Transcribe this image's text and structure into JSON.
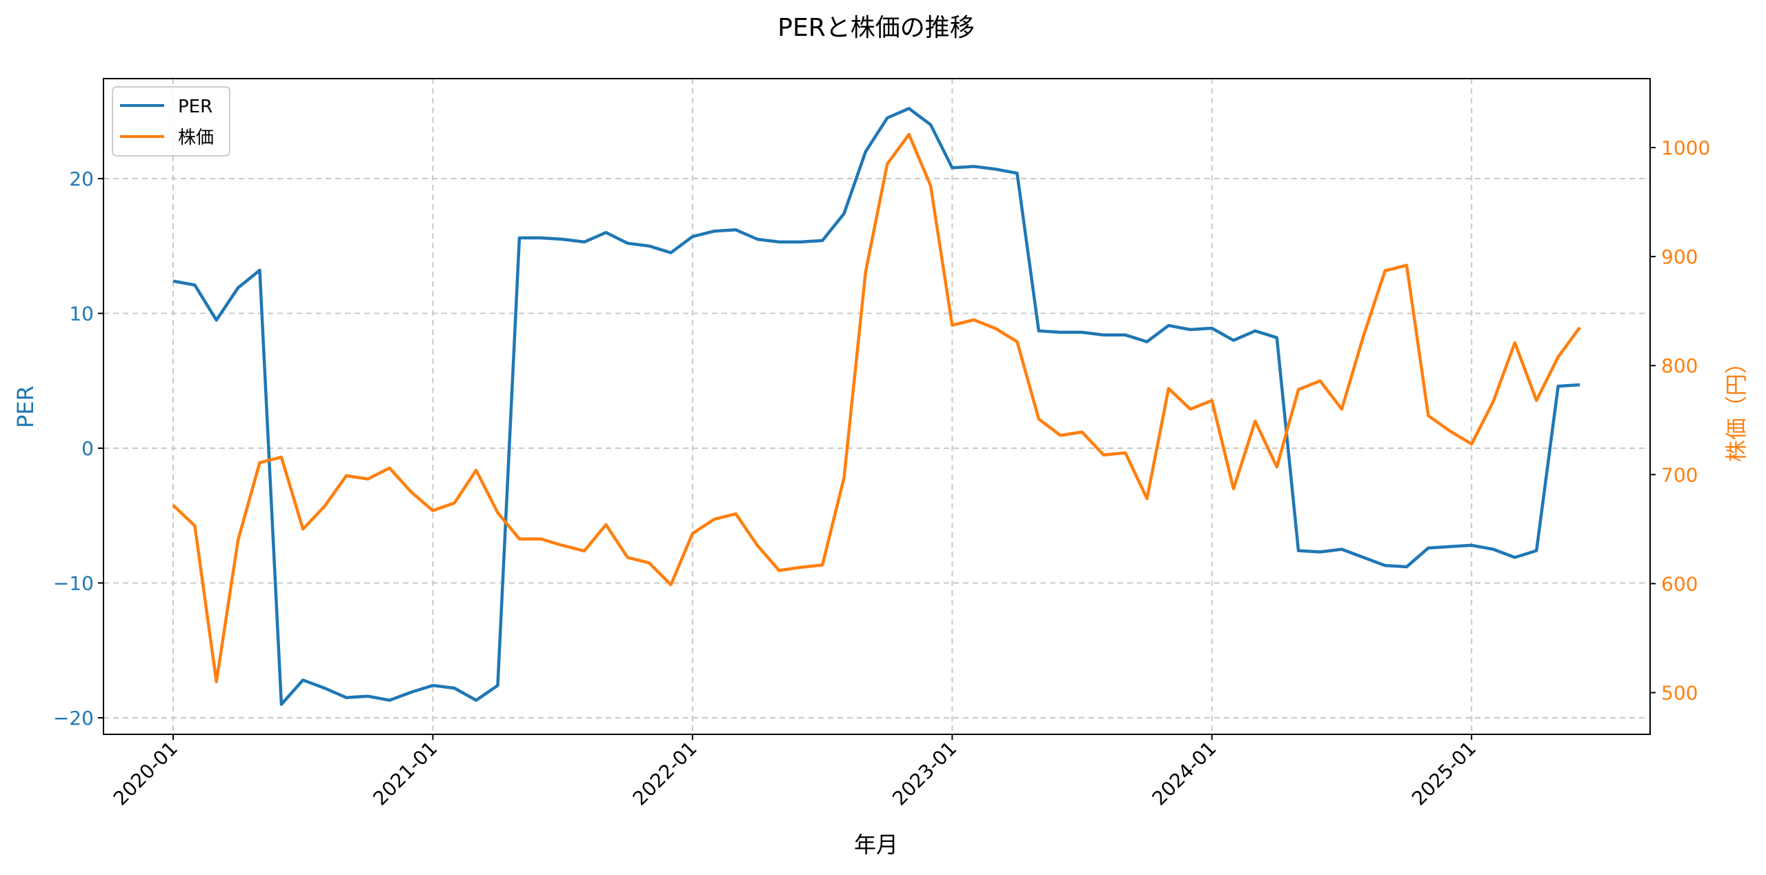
{
  "chart_data": {
    "type": "line",
    "title": "PERと株価の推移",
    "xlabel": "年月",
    "ylabel": "PER",
    "ylabel_right": "株価（円）",
    "ylim": [
      -21.3,
      27.0
    ],
    "ylim_right": [
      463,
      1067
    ],
    "grid": true,
    "legend_position": "upper left",
    "x_tick_labels": [
      "2020-01",
      "2021-01",
      "2022-01",
      "2023-01",
      "2024-01",
      "2025-01"
    ],
    "y_tick_labels": [
      "−20",
      "−10",
      "0",
      "10",
      "20"
    ],
    "y_ticks": [
      -20,
      -10,
      0,
      10,
      20
    ],
    "y_right_tick_labels": [
      "500",
      "600",
      "700",
      "800",
      "900",
      "1000"
    ],
    "y_right_ticks": [
      500,
      600,
      700,
      800,
      900,
      1000
    ],
    "x_start": "2020-01",
    "x_end": "2025-06",
    "series": [
      {
        "name": "PER",
        "axis": "left",
        "color": "#1f77b4",
        "values": [
          12.4,
          12.1,
          9.5,
          11.9,
          13.2,
          -19.0,
          -17.2,
          -17.8,
          -18.5,
          -18.4,
          -18.7,
          -18.1,
          -17.6,
          -17.8,
          -18.7,
          -17.6,
          15.6,
          15.6,
          15.5,
          15.3,
          16.0,
          15.2,
          15.0,
          14.5,
          15.7,
          16.1,
          16.2,
          15.5,
          15.3,
          15.3,
          15.4,
          17.4,
          22.0,
          24.5,
          25.2,
          24.0,
          20.8,
          20.9,
          20.7,
          20.4,
          8.7,
          8.6,
          8.6,
          8.4,
          8.4,
          7.9,
          9.1,
          8.8,
          8.9,
          8.0,
          8.7,
          8.2,
          -7.6,
          -7.7,
          -7.5,
          -8.1,
          -8.7,
          -8.8,
          -7.4,
          -7.3,
          -7.2,
          -7.5,
          -8.1,
          -7.6,
          4.6,
          4.7
        ]
      },
      {
        "name": "株価",
        "axis": "right",
        "color": "#ff7f0e",
        "values": [
          672,
          653,
          510,
          640,
          711,
          716,
          650,
          671,
          699,
          696,
          706,
          684,
          667,
          674,
          704,
          665,
          641,
          641,
          635,
          630,
          654,
          624,
          619,
          599,
          646,
          659,
          664,
          635,
          612,
          615,
          617,
          697,
          886,
          985,
          1012,
          965,
          837,
          842,
          834,
          822,
          751,
          736,
          739,
          718,
          720,
          678,
          779,
          760,
          768,
          687,
          749,
          707,
          778,
          786,
          760,
          827,
          887,
          892,
          754,
          740,
          728,
          767,
          821,
          768,
          808,
          835
        ]
      }
    ]
  }
}
